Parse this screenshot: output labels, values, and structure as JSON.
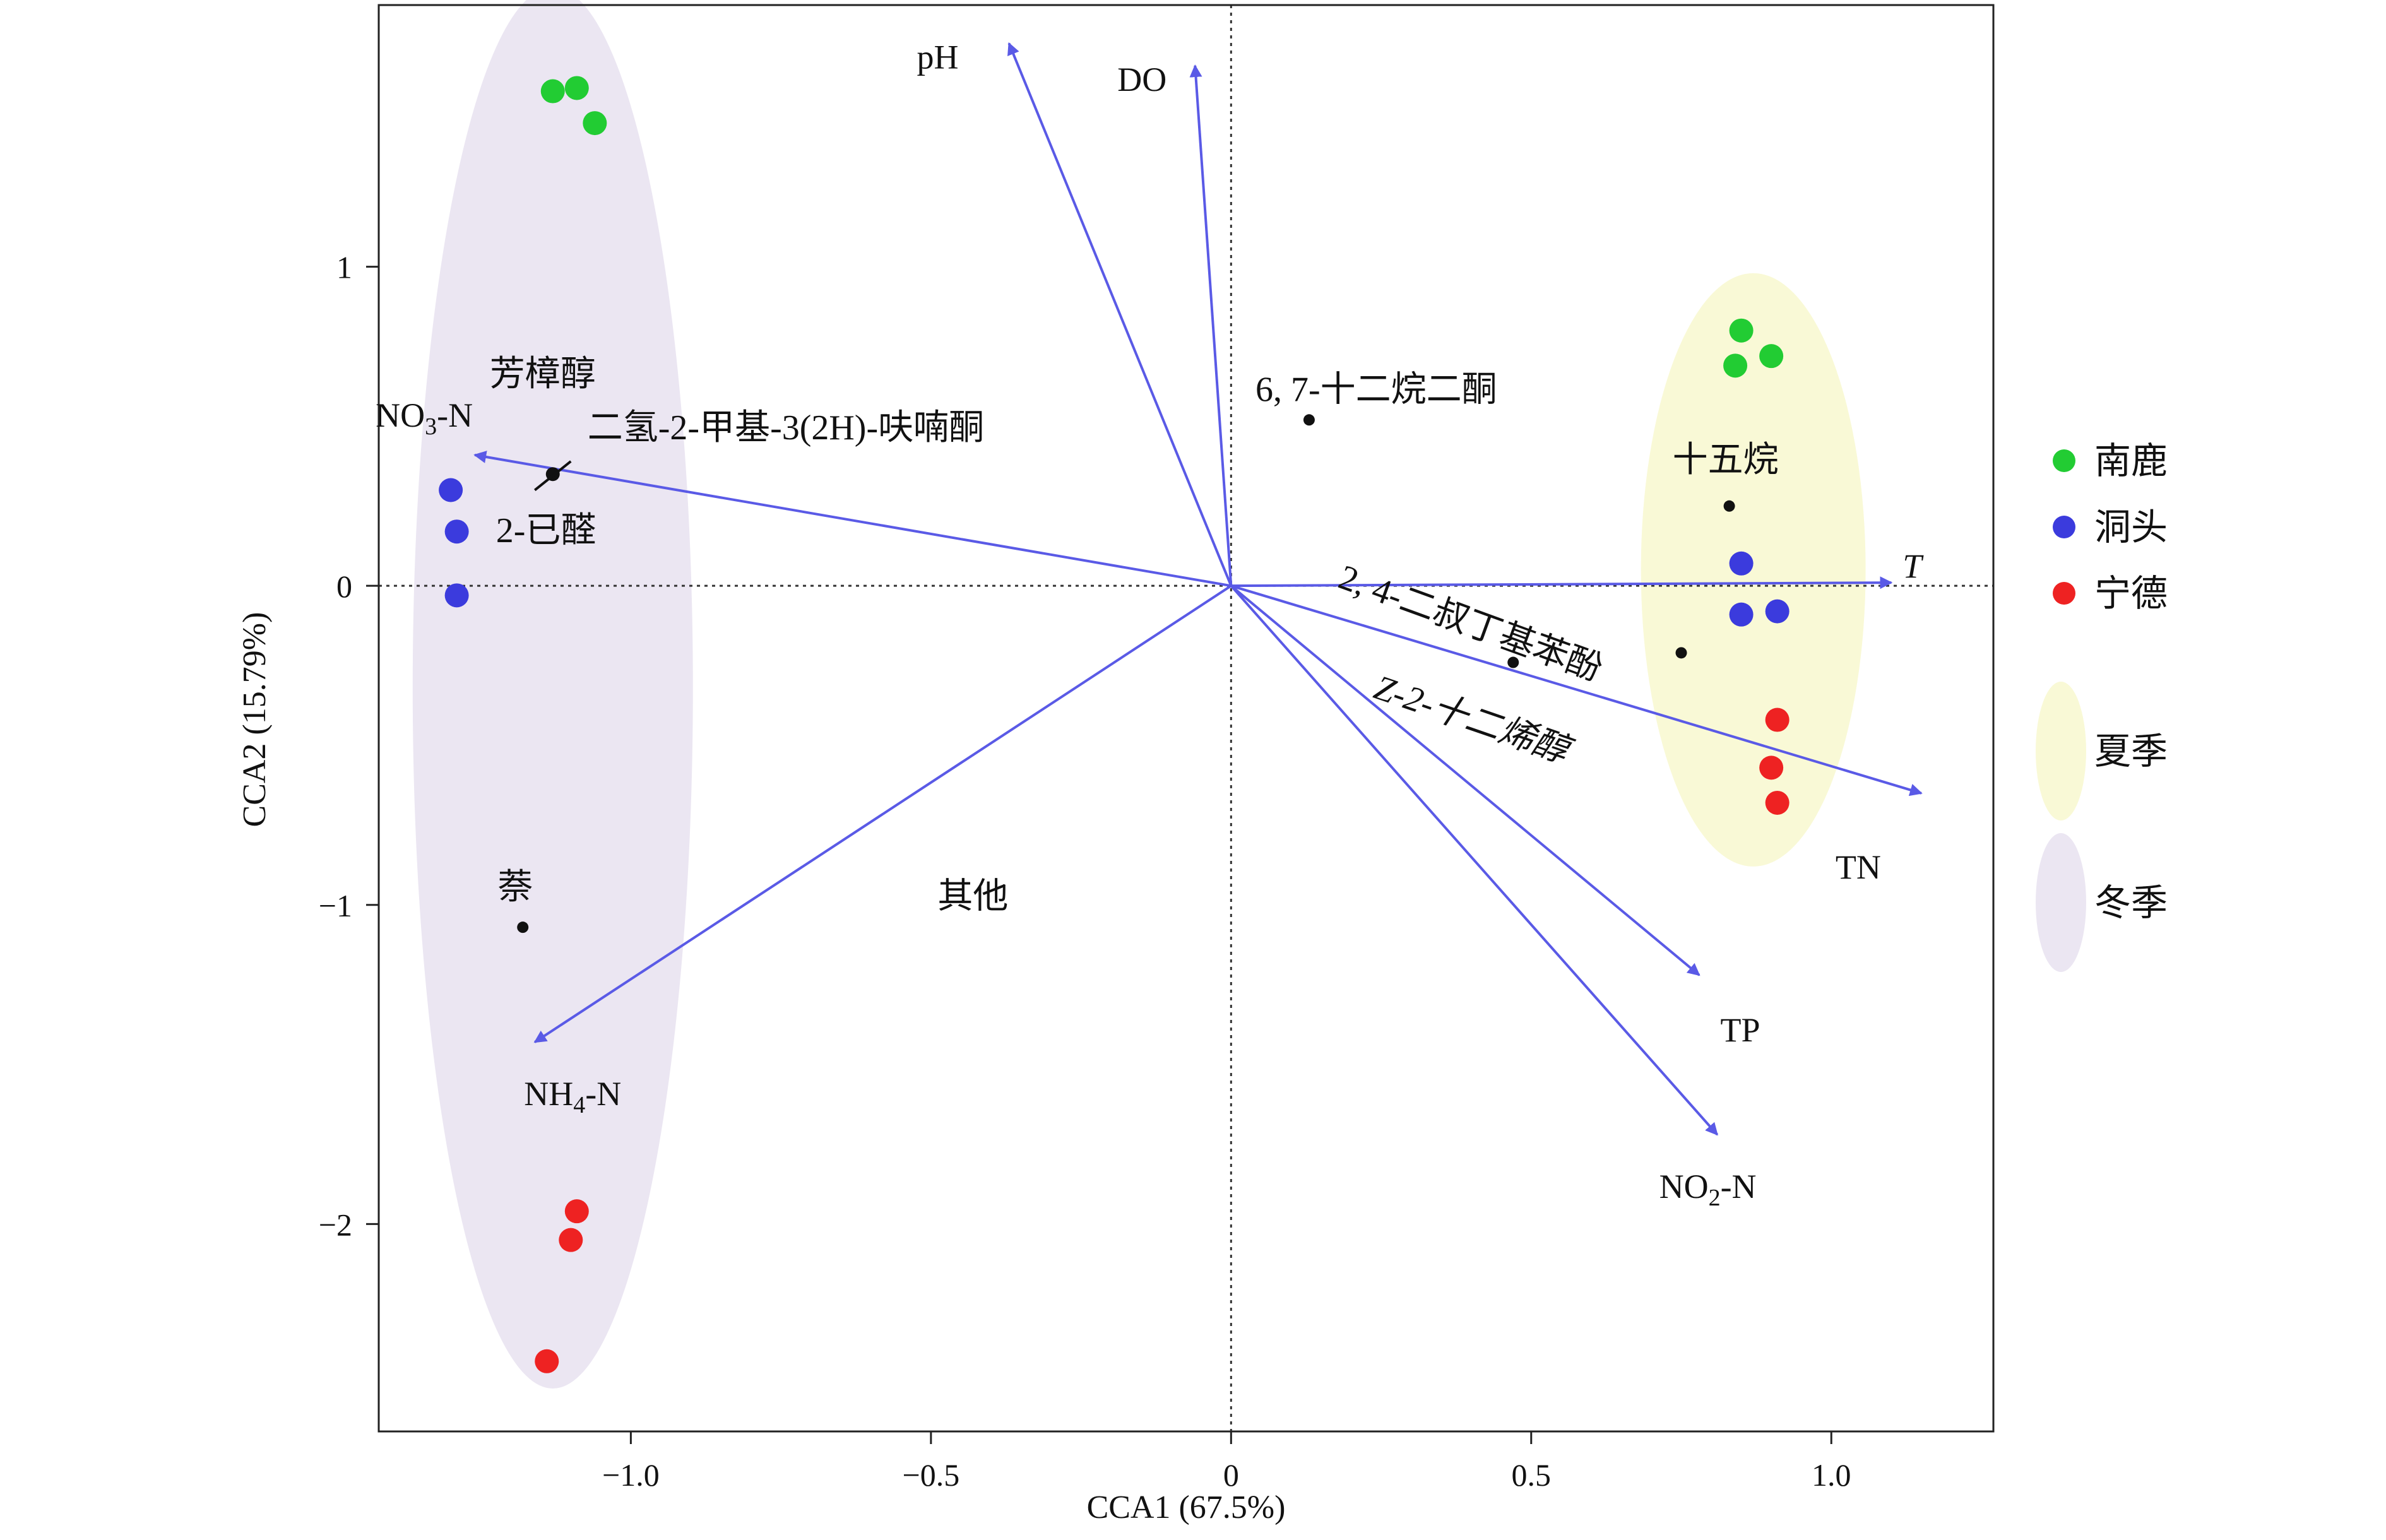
{
  "chart_data": {
    "type": "scatter",
    "title": "",
    "xlabel": "CCA1 (67.5%)",
    "ylabel": "CCA2 (15.79%)",
    "xlim": [
      -1.42,
      1.27
    ],
    "ylim": [
      -2.65,
      1.82
    ],
    "xticks": [
      -1.0,
      -0.5,
      0,
      0.5,
      1.0
    ],
    "yticks": [
      -2,
      -1,
      0,
      1
    ],
    "xtick_labels": [
      "−1.0",
      "−0.5",
      "0",
      "0.5",
      "1.0"
    ],
    "ytick_labels": [
      "−2",
      "−1",
      "0",
      "1"
    ],
    "grid": false,
    "legend_position": "right",
    "colors": {
      "vector": "#5a5ae6",
      "sites": {
        "南鹿": "#22cc33",
        "洞头": "#3b3bdd",
        "宁德": "#ee2222"
      },
      "summer_ellipse": "#f9f9d6",
      "winter_ellipse": "#ebe6f2"
    },
    "sites": [
      {
        "group": "南鹿",
        "points": [
          [
            -1.13,
            1.55
          ],
          [
            -1.09,
            1.56
          ],
          [
            -1.06,
            1.45
          ],
          [
            0.85,
            0.8
          ],
          [
            0.9,
            0.72
          ],
          [
            0.84,
            0.69
          ]
        ]
      },
      {
        "group": "洞头",
        "points": [
          [
            -1.3,
            0.3
          ],
          [
            -1.29,
            0.17
          ],
          [
            -1.29,
            -0.03
          ],
          [
            0.85,
            0.07
          ],
          [
            0.85,
            -0.09
          ],
          [
            0.91,
            -0.08
          ]
        ]
      },
      {
        "group": "宁德",
        "points": [
          [
            -1.09,
            -1.96
          ],
          [
            -1.1,
            -2.05
          ],
          [
            -1.14,
            -2.43
          ],
          [
            0.91,
            -0.42
          ],
          [
            0.9,
            -0.57
          ],
          [
            0.91,
            -0.68
          ]
        ]
      }
    ],
    "environment_vectors": [
      {
        "label": "pH",
        "x": -0.37,
        "y": 1.7
      },
      {
        "label": "DO",
        "x": -0.06,
        "y": 1.63
      },
      {
        "label": "NO3-N",
        "x": -1.26,
        "y": 0.41
      },
      {
        "label": "T",
        "x": 1.1,
        "y": 0.01
      },
      {
        "label": "TN",
        "x": 1.15,
        "y": -0.65
      },
      {
        "label": "TP",
        "x": 0.78,
        "y": -1.22
      },
      {
        "label": "NO2-N",
        "x": 0.81,
        "y": -1.72
      },
      {
        "label": "NH4-N",
        "x": -1.16,
        "y": -1.43
      }
    ],
    "compounds": [
      {
        "label": "芳樟醇",
        "x": -1.13,
        "y": 0.35
      },
      {
        "label": "二氢-2-甲基-3(2H)-呋喃酮",
        "x": -1.13,
        "y": 0.35
      },
      {
        "label": "2-已醛",
        "x": -1.13,
        "y": 0.35
      },
      {
        "label": "6, 7-十二烷二酮",
        "x": 0.13,
        "y": 0.52
      },
      {
        "label": "十五烷",
        "x": 0.83,
        "y": 0.25
      },
      {
        "label": "2, 4-二叔丁基苯酚",
        "x": 0.47,
        "y": -0.24
      },
      {
        "label": "Z-2-十二烯醇",
        "x": 0.75,
        "y": -0.21
      },
      {
        "label": "萘",
        "x": -1.18,
        "y": -1.07
      },
      {
        "label": "其他",
        "x": -0.43,
        "y": -0.97
      }
    ],
    "legend": {
      "sites": [
        "南鹿",
        "洞头",
        "宁德"
      ],
      "seasons": [
        "夏季",
        "冬季"
      ]
    }
  }
}
